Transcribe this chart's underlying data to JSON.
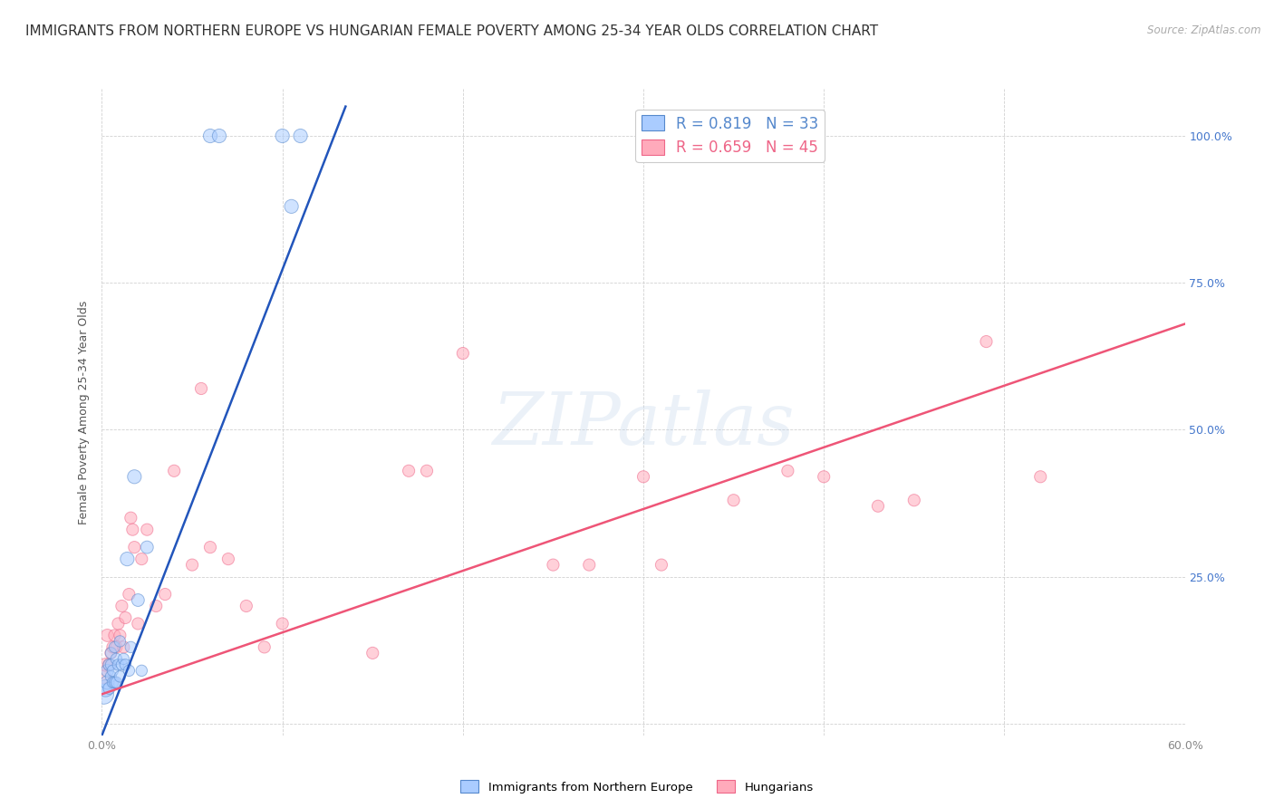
{
  "title": "IMMIGRANTS FROM NORTHERN EUROPE VS HUNGARIAN FEMALE POVERTY AMONG 25-34 YEAR OLDS CORRELATION CHART",
  "source": "Source: ZipAtlas.com",
  "ylabel": "Female Poverty Among 25-34 Year Olds",
  "xlim": [
    0.0,
    0.6
  ],
  "ylim": [
    -0.02,
    1.08
  ],
  "xticks": [
    0.0,
    0.1,
    0.2,
    0.3,
    0.4,
    0.5,
    0.6
  ],
  "xticklabels": [
    "0.0%",
    "",
    "",
    "",
    "",
    "",
    "60.0%"
  ],
  "right_yticks": [
    0.0,
    0.25,
    0.5,
    0.75,
    1.0
  ],
  "right_yticklabels": [
    "",
    "25.0%",
    "50.0%",
    "75.0%",
    "100.0%"
  ],
  "legend_blue_label": "R = 0.819   N = 33",
  "legend_pink_label": "R = 0.659   N = 45",
  "blue_fill": "#aaccff",
  "blue_edge": "#5588cc",
  "pink_fill": "#ffaabb",
  "pink_edge": "#ee6688",
  "blue_line_color": "#2255bb",
  "pink_line_color": "#ee5577",
  "watermark": "ZIPatlas",
  "blue_scatter_x": [
    0.001,
    0.002,
    0.003,
    0.003,
    0.004,
    0.004,
    0.005,
    0.005,
    0.005,
    0.006,
    0.006,
    0.007,
    0.007,
    0.008,
    0.008,
    0.009,
    0.01,
    0.01,
    0.011,
    0.012,
    0.013,
    0.014,
    0.015,
    0.016,
    0.018,
    0.02,
    0.022,
    0.025,
    0.06,
    0.065,
    0.1,
    0.105,
    0.11
  ],
  "blue_scatter_y": [
    0.05,
    0.06,
    0.07,
    0.09,
    0.06,
    0.1,
    0.08,
    0.1,
    0.12,
    0.07,
    0.09,
    0.07,
    0.13,
    0.07,
    0.11,
    0.1,
    0.08,
    0.14,
    0.1,
    0.11,
    0.1,
    0.28,
    0.09,
    0.13,
    0.42,
    0.21,
    0.09,
    0.3,
    1.0,
    1.0,
    1.0,
    0.88,
    1.0
  ],
  "blue_scatter_s": [
    250,
    180,
    120,
    100,
    90,
    90,
    80,
    80,
    80,
    80,
    80,
    80,
    80,
    80,
    80,
    80,
    80,
    80,
    80,
    80,
    80,
    120,
    80,
    80,
    120,
    100,
    80,
    100,
    120,
    120,
    120,
    120,
    120
  ],
  "pink_scatter_x": [
    0.001,
    0.002,
    0.003,
    0.004,
    0.005,
    0.006,
    0.007,
    0.008,
    0.009,
    0.01,
    0.011,
    0.012,
    0.013,
    0.015,
    0.016,
    0.017,
    0.018,
    0.02,
    0.022,
    0.025,
    0.03,
    0.035,
    0.04,
    0.05,
    0.055,
    0.06,
    0.07,
    0.08,
    0.09,
    0.1,
    0.15,
    0.17,
    0.18,
    0.2,
    0.25,
    0.27,
    0.3,
    0.31,
    0.35,
    0.38,
    0.4,
    0.43,
    0.45,
    0.49,
    0.52
  ],
  "pink_scatter_y": [
    0.08,
    0.1,
    0.15,
    0.1,
    0.12,
    0.13,
    0.15,
    0.13,
    0.17,
    0.15,
    0.2,
    0.13,
    0.18,
    0.22,
    0.35,
    0.33,
    0.3,
    0.17,
    0.28,
    0.33,
    0.2,
    0.22,
    0.43,
    0.27,
    0.57,
    0.3,
    0.28,
    0.2,
    0.13,
    0.17,
    0.12,
    0.43,
    0.43,
    0.63,
    0.27,
    0.27,
    0.42,
    0.27,
    0.38,
    0.43,
    0.42,
    0.37,
    0.38,
    0.65,
    0.42
  ],
  "pink_scatter_s": [
    120,
    110,
    100,
    95,
    90,
    90,
    90,
    90,
    90,
    90,
    90,
    90,
    90,
    90,
    90,
    90,
    90,
    90,
    90,
    90,
    90,
    90,
    90,
    90,
    90,
    90,
    90,
    90,
    90,
    90,
    90,
    90,
    90,
    90,
    90,
    90,
    90,
    90,
    90,
    90,
    90,
    90,
    90,
    90,
    90
  ],
  "blue_line_x0": 0.0,
  "blue_line_x1": 0.135,
  "blue_line_y0": -0.02,
  "blue_line_y1": 1.05,
  "pink_line_x0": 0.0,
  "pink_line_x1": 0.6,
  "pink_line_y0": 0.05,
  "pink_line_y1": 0.68,
  "background_color": "#ffffff",
  "grid_color": "#cccccc",
  "title_fontsize": 11,
  "ylabel_fontsize": 9,
  "tick_fontsize": 9,
  "legend_fontsize": 12
}
